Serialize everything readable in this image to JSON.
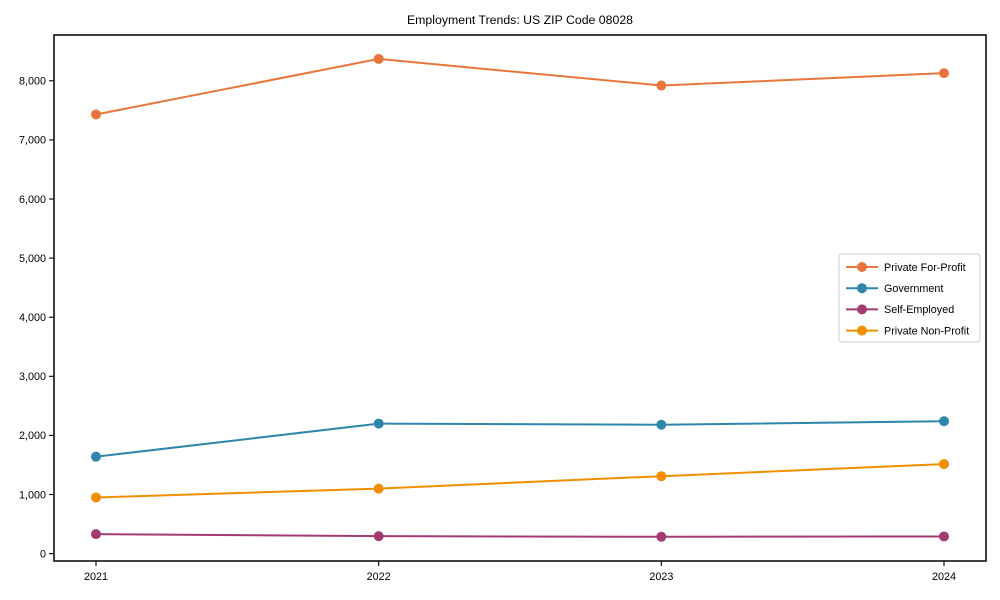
{
  "chart_data": {
    "type": "line",
    "title": "Employment Trends: US ZIP Code 08028",
    "categories": [
      "2021",
      "2022",
      "2023",
      "2024"
    ],
    "series": [
      {
        "name": "Private For-Profit",
        "color": "#E8763C",
        "marker": "circle",
        "values": [
          7430,
          8370,
          7920,
          8130
        ]
      },
      {
        "name": "Government",
        "color": "#2E86AB",
        "marker": "circle",
        "values": [
          1640,
          2200,
          2180,
          2240
        ]
      },
      {
        "name": "Self-Employed",
        "color": "#A23B72",
        "marker": "circle",
        "values": [
          330,
          295,
          285,
          290
        ]
      },
      {
        "name": "Private Non-Profit",
        "color": "#F18F01",
        "marker": "circle",
        "values": [
          950,
          1100,
          1310,
          1515
        ]
      }
    ],
    "xlabel": "",
    "ylabel": "",
    "xtick_labels": [
      "2021",
      "2022",
      "2023",
      "2024"
    ],
    "yticks": [
      0,
      1000,
      2000,
      3000,
      4000,
      5000,
      6000,
      7000,
      8000
    ],
    "ytick_labels": [
      "0",
      "1,000",
      "2,000",
      "3,000",
      "4,000",
      "5,000",
      "6,000",
      "7,000",
      "8,000"
    ],
    "ylim": [
      -125,
      8775
    ],
    "grid": false,
    "legend": {
      "position": "center-right",
      "background": "#ffffff",
      "border_color": "#cccccc"
    },
    "axis_color": "#000000",
    "background": "#ffffff"
  }
}
